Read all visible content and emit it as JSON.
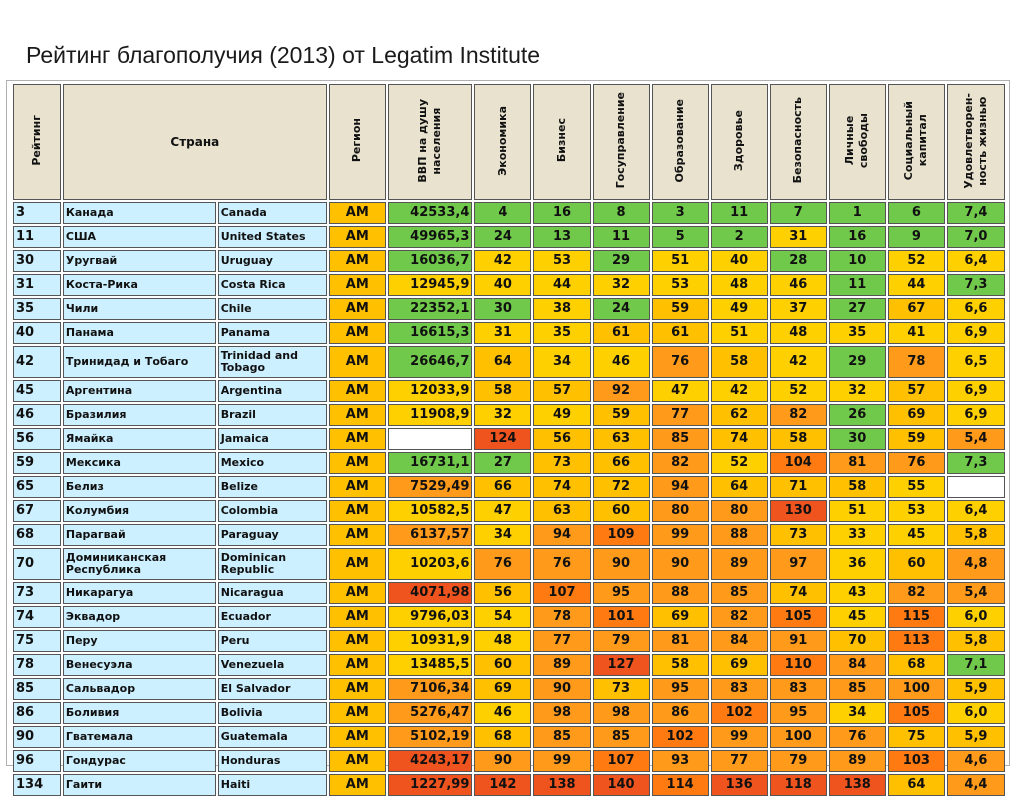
{
  "title": "Рейтинг благополучия (2013) от Legatim Institute",
  "headers": {
    "rank": "Рейтинг",
    "country": "Страна",
    "region": "Регион",
    "gdp": "ВВП на душу\nнаселения",
    "economy": "Экономика",
    "business": "Бизнес",
    "governance": "Госуправление",
    "education": "Образование",
    "health": "Здоровье",
    "safety": "Безопасность",
    "freedom": "Личные\nсвободы",
    "social": "Социальный\nкапитал",
    "satisfaction": "Удовлетворен-\nность жизнью"
  },
  "colors": {
    "green": "#70c94a",
    "yellow": "#ffd000",
    "orange_light": "#ffc000",
    "orange": "#ff9a1a",
    "orange_dark": "#ff7a10",
    "red": "#f0541e",
    "white": "#ffffff",
    "name_cell": "#ccf0ff",
    "region_cell": "#ffc000",
    "header": "#e8e2cf"
  },
  "rows": [
    {
      "rank": "3",
      "ru": "Канада",
      "en": "Canada",
      "region": "AM",
      "gdp": "42533,4",
      "scores": [
        "4",
        "16",
        "8",
        "3",
        "11",
        "7",
        "1",
        "6",
        "7,4"
      ]
    },
    {
      "rank": "11",
      "ru": "США",
      "en": "United States",
      "region": "AM",
      "gdp": "49965,3",
      "scores": [
        "24",
        "13",
        "11",
        "5",
        "2",
        "31",
        "16",
        "9",
        "7,0"
      ]
    },
    {
      "rank": "30",
      "ru": "Уругвай",
      "en": "Uruguay",
      "region": "AM",
      "gdp": "16036,7",
      "scores": [
        "42",
        "53",
        "29",
        "51",
        "40",
        "28",
        "10",
        "52",
        "6,4"
      ]
    },
    {
      "rank": "31",
      "ru": "Коста-Рика",
      "en": "Costa Rica",
      "region": "AM",
      "gdp": "12945,9",
      "scores": [
        "40",
        "44",
        "32",
        "53",
        "48",
        "46",
        "11",
        "44",
        "7,3"
      ]
    },
    {
      "rank": "35",
      "ru": "Чили",
      "en": "Chile",
      "region": "AM",
      "gdp": "22352,1",
      "scores": [
        "30",
        "38",
        "24",
        "59",
        "49",
        "37",
        "27",
        "67",
        "6,6"
      ]
    },
    {
      "rank": "40",
      "ru": "Панама",
      "en": "Panama",
      "region": "AM",
      "gdp": "16615,3",
      "scores": [
        "31",
        "35",
        "61",
        "61",
        "51",
        "48",
        "35",
        "41",
        "6,9"
      ]
    },
    {
      "rank": "42",
      "ru": "Тринидад и Тобаго",
      "en": "Trinidad and Tobago",
      "region": "AM",
      "gdp": "26646,7",
      "scores": [
        "64",
        "34",
        "46",
        "76",
        "58",
        "42",
        "29",
        "78",
        "6,5"
      ]
    },
    {
      "rank": "45",
      "ru": "Аргентина",
      "en": "Argentina",
      "region": "AM",
      "gdp": "12033,9",
      "scores": [
        "58",
        "57",
        "92",
        "47",
        "42",
        "52",
        "32",
        "57",
        "6,9"
      ]
    },
    {
      "rank": "46",
      "ru": "Бразилия",
      "en": "Brazil",
      "region": "AM",
      "gdp": "11908,9",
      "scores": [
        "32",
        "49",
        "59",
        "77",
        "62",
        "82",
        "26",
        "69",
        "6,9"
      ]
    },
    {
      "rank": "56",
      "ru": "Ямайка",
      "en": "Jamaica",
      "region": "AM",
      "gdp": "",
      "scores": [
        "124",
        "56",
        "63",
        "85",
        "74",
        "58",
        "30",
        "59",
        "5,4"
      ]
    },
    {
      "rank": "59",
      "ru": "Мексика",
      "en": "Mexico",
      "region": "AM",
      "gdp": "16731,1",
      "scores": [
        "27",
        "73",
        "66",
        "82",
        "52",
        "104",
        "81",
        "76",
        "7,3"
      ]
    },
    {
      "rank": "65",
      "ru": "Белиз",
      "en": "Belize",
      "region": "AM",
      "gdp": "7529,49",
      "scores": [
        "66",
        "74",
        "72",
        "94",
        "64",
        "71",
        "58",
        "55",
        ""
      ]
    },
    {
      "rank": "67",
      "ru": "Колумбия",
      "en": "Colombia",
      "region": "AM",
      "gdp": "10582,5",
      "scores": [
        "47",
        "63",
        "60",
        "80",
        "80",
        "130",
        "51",
        "53",
        "6,4"
      ]
    },
    {
      "rank": "68",
      "ru": "Парагвай",
      "en": "Paraguay",
      "region": "AM",
      "gdp": "6137,57",
      "scores": [
        "34",
        "94",
        "109",
        "99",
        "88",
        "73",
        "33",
        "45",
        "5,8"
      ]
    },
    {
      "rank": "70",
      "ru": "Доминиканская Республика",
      "en": "Dominican Republic",
      "region": "AM",
      "gdp": "10203,6",
      "scores": [
        "76",
        "76",
        "90",
        "90",
        "89",
        "97",
        "36",
        "60",
        "4,8"
      ]
    },
    {
      "rank": "73",
      "ru": "Никарагуа",
      "en": "Nicaragua",
      "region": "AM",
      "gdp": "4071,98",
      "scores": [
        "56",
        "107",
        "95",
        "88",
        "85",
        "74",
        "43",
        "82",
        "5,4"
      ]
    },
    {
      "rank": "74",
      "ru": "Эквадор",
      "en": "Ecuador",
      "region": "AM",
      "gdp": "9796,03",
      "scores": [
        "54",
        "78",
        "101",
        "69",
        "82",
        "105",
        "45",
        "115",
        "6,0"
      ]
    },
    {
      "rank": "75",
      "ru": "Перу",
      "en": "Peru",
      "region": "AM",
      "gdp": "10931,9",
      "scores": [
        "48",
        "77",
        "79",
        "81",
        "84",
        "91",
        "70",
        "113",
        "5,8"
      ]
    },
    {
      "rank": "78",
      "ru": "Венесуэла",
      "en": "Venezuela",
      "region": "AM",
      "gdp": "13485,5",
      "scores": [
        "60",
        "89",
        "127",
        "58",
        "69",
        "110",
        "84",
        "68",
        "7,1"
      ]
    },
    {
      "rank": "85",
      "ru": "Сальвадор",
      "en": "El Salvador",
      "region": "AM",
      "gdp": "7106,34",
      "scores": [
        "69",
        "90",
        "73",
        "95",
        "83",
        "83",
        "85",
        "100",
        "5,9"
      ]
    },
    {
      "rank": "86",
      "ru": "Боливия",
      "en": "Bolivia",
      "region": "AM",
      "gdp": "5276,47",
      "scores": [
        "46",
        "98",
        "98",
        "86",
        "102",
        "95",
        "34",
        "105",
        "6,0"
      ]
    },
    {
      "rank": "90",
      "ru": "Гватемала",
      "en": "Guatemala",
      "region": "AM",
      "gdp": "5102,19",
      "scores": [
        "68",
        "85",
        "85",
        "102",
        "99",
        "100",
        "76",
        "75",
        "5,9"
      ]
    },
    {
      "rank": "96",
      "ru": "Гондурас",
      "en": "Honduras",
      "region": "AM",
      "gdp": "4243,17",
      "scores": [
        "90",
        "99",
        "107",
        "93",
        "77",
        "79",
        "89",
        "103",
        "4,6"
      ]
    },
    {
      "rank": "134",
      "ru": "Гаити",
      "en": "Haiti",
      "region": "AM",
      "gdp": "1227,99",
      "scores": [
        "142",
        "138",
        "140",
        "114",
        "136",
        "118",
        "138",
        "64",
        "4,4"
      ]
    }
  ]
}
